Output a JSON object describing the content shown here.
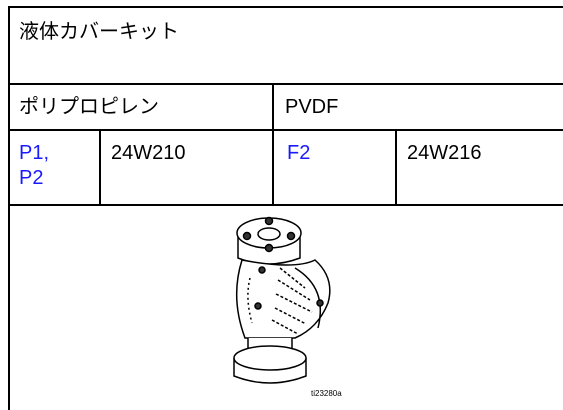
{
  "table": {
    "title": "液体カバーキット",
    "header": [
      "ポリプロピレン",
      "PVDF"
    ],
    "rows": [
      [
        [
          "P1,",
          "P2"
        ],
        "24W210",
        [
          "F2"
        ],
        "24W216"
      ]
    ],
    "figure_caption": "ti23280a"
  }
}
